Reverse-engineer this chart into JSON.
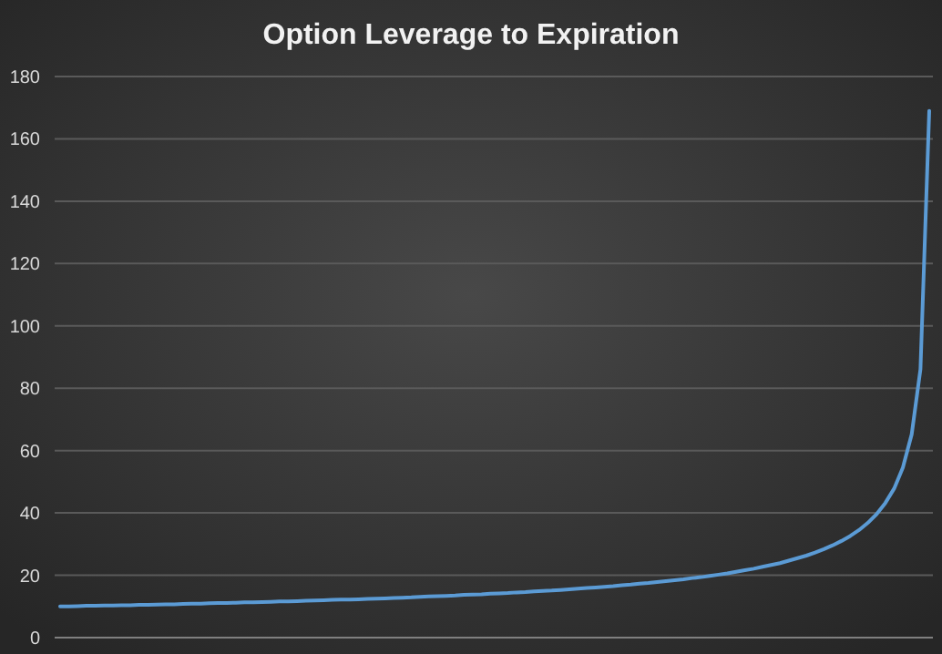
{
  "chart_data": {
    "type": "line",
    "title": "Option Leverage to Expiration",
    "categories": [
      null,
      null,
      null,
      null,
      null,
      null,
      null,
      null,
      null,
      null,
      null,
      null,
      null,
      null,
      null,
      null,
      null,
      null,
      null,
      null,
      null,
      null,
      null,
      null,
      null,
      null,
      null,
      null,
      null,
      null,
      null,
      null,
      null,
      null,
      null,
      null,
      null,
      null,
      null,
      null,
      null,
      null,
      null,
      null,
      null,
      null,
      null,
      null,
      null,
      null,
      null,
      null,
      null,
      null,
      null,
      null,
      null,
      null,
      null,
      null,
      null,
      null,
      null,
      null,
      null,
      null,
      null,
      null,
      null,
      null,
      null,
      null,
      null,
      null,
      null,
      null,
      null,
      null,
      null,
      null,
      null,
      null,
      null,
      null,
      null,
      null,
      null,
      null,
      null,
      null,
      null,
      null,
      null,
      null,
      null,
      null,
      null,
      null,
      null,
      null
    ],
    "series": [
      {
        "color": "#5b9bd5",
        "values": [
          10.0,
          10.0,
          10.1,
          10.2,
          10.2,
          10.3,
          10.3,
          10.4,
          10.4,
          10.5,
          10.5,
          10.6,
          10.7,
          10.7,
          10.8,
          10.9,
          10.9,
          11.0,
          11.1,
          11.1,
          11.2,
          11.3,
          11.3,
          11.4,
          11.5,
          11.6,
          11.6,
          11.7,
          11.8,
          11.9,
          12.0,
          12.1,
          12.2,
          12.2,
          12.3,
          12.4,
          12.5,
          12.6,
          12.7,
          12.8,
          12.9,
          13.1,
          13.2,
          13.3,
          13.4,
          13.5,
          13.7,
          13.8,
          13.9,
          14.1,
          14.2,
          14.3,
          14.5,
          14.6,
          14.8,
          15.0,
          15.1,
          15.3,
          15.5,
          15.7,
          15.9,
          16.1,
          16.3,
          16.5,
          16.8,
          17.0,
          17.3,
          17.5,
          17.8,
          18.1,
          18.4,
          18.7,
          19.1,
          19.4,
          19.8,
          20.2,
          20.6,
          21.1,
          21.6,
          22.1,
          22.7,
          23.3,
          23.9,
          24.7,
          25.5,
          26.3,
          27.3,
          28.4,
          29.6,
          31.0,
          32.6,
          34.5,
          36.8,
          39.6,
          43.2,
          47.8,
          54.6,
          65.2,
          86.1,
          169
        ]
      }
    ],
    "ylim": [
      0,
      180
    ],
    "yticks": [
      0,
      20,
      40,
      60,
      80,
      100,
      120,
      140,
      160,
      180
    ],
    "grid": "y",
    "marker": "none",
    "line_style": "solid"
  }
}
